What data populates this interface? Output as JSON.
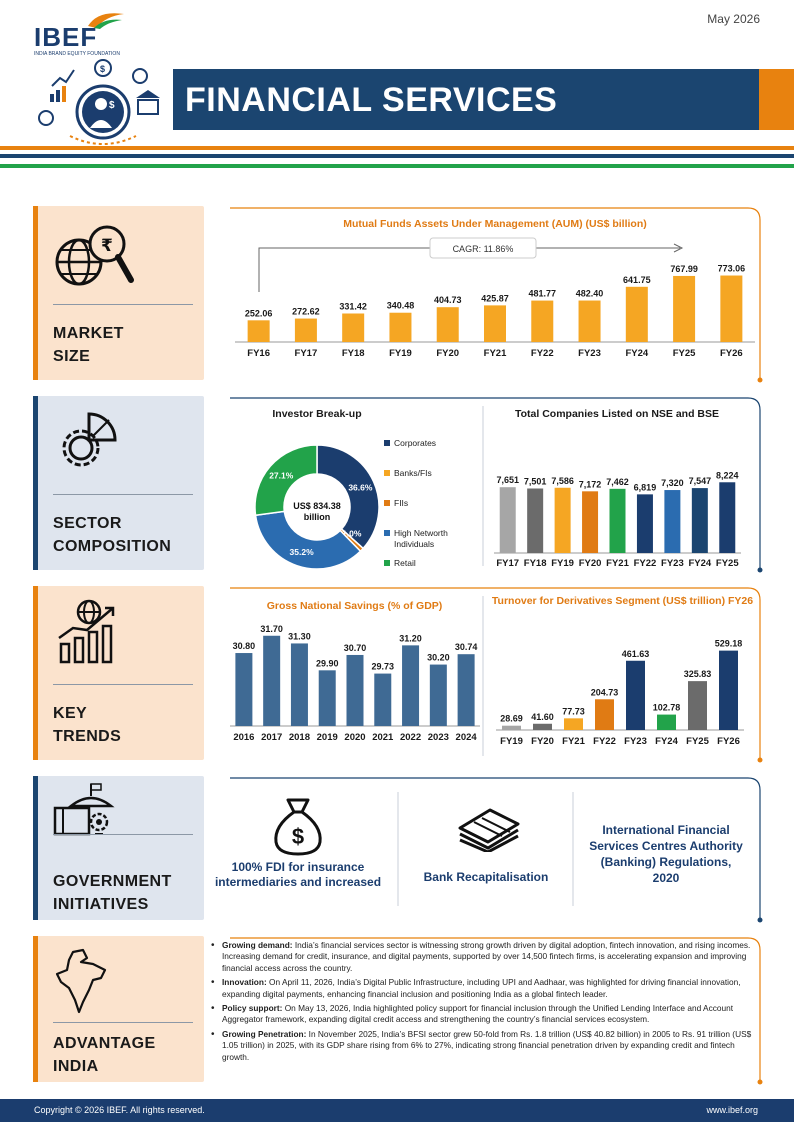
{
  "header": {
    "brand": "IBEF",
    "brand_sub": "INDIA BRAND EQUITY FOUNDATION",
    "date": "May 2026",
    "title": "FINANCIAL SERVICES"
  },
  "sections": {
    "market_size": [
      "MARKET",
      "SIZE"
    ],
    "sector_composition": [
      "SECTOR",
      "COMPOSITION"
    ],
    "key_trends": [
      "KEY",
      "TRENDS"
    ],
    "government_initiatives": [
      "GOVERNMENT",
      "INITIATIVES"
    ],
    "advantage_india": [
      "ADVANTAGE",
      "INDIA"
    ]
  },
  "colors": {
    "navy": "#1b3d6e",
    "orange": "#f5a623",
    "dark_orange": "#e07b14",
    "green": "#22a34a",
    "blue": "#2b6cb0",
    "slate": "#3f6a94",
    "grey": "#a6a6a6",
    "dark_grey": "#6b6b6b"
  },
  "chart_data": [
    {
      "id": "aum",
      "type": "bar",
      "title": "Mutual Funds Assets Under Management (AUM) (US$ billion)",
      "annotation": "CAGR: 11.86%",
      "categories": [
        "FY16",
        "FY17",
        "FY18",
        "FY19",
        "FY20",
        "FY21",
        "FY22",
        "FY23",
        "FY24",
        "FY25",
        "FY26"
      ],
      "values": [
        252.06,
        272.62,
        331.42,
        340.48,
        404.73,
        425.87,
        481.77,
        482.4,
        641.75,
        767.99,
        773.06
      ],
      "labels": [
        "252.06",
        "272.62",
        "331.42",
        "340.48",
        "404.73",
        "425.87",
        "481.77",
        "482.40",
        "641.75",
        "767.99",
        "773.06"
      ],
      "color": "#f5a623",
      "ylim": [
        0,
        1000
      ]
    },
    {
      "id": "investor",
      "type": "pie",
      "title": "Investor Break-up",
      "center_text": [
        "US$ 834.38",
        "billion"
      ],
      "categories": [
        "Corporates",
        "Banks/FIs",
        "FIIs",
        "High Networth Individuals",
        "Retail"
      ],
      "values": [
        36.6,
        0.0,
        1.0,
        35.2,
        27.1
      ],
      "labels": [
        "36.6%",
        "0.0%",
        "1.0%",
        "35.2%",
        "27.1%"
      ],
      "colors": [
        "#1b3d6e",
        "#f5a623",
        "#e07b14",
        "#2b6cb0",
        "#22a34a"
      ]
    },
    {
      "id": "listed",
      "type": "bar",
      "title": "Total Companies Listed on NSE and BSE",
      "categories": [
        "FY17",
        "FY18",
        "FY19",
        "FY20",
        "FY21",
        "FY22",
        "FY23",
        "FY24",
        "FY25"
      ],
      "values": [
        7651,
        7501,
        7586,
        7172,
        7462,
        6819,
        7320,
        7547,
        8224
      ],
      "labels": [
        "7,651",
        "7,501",
        "7,586",
        "7,172",
        "7,462",
        "6,819",
        "7,320",
        "7,547",
        "8,224"
      ],
      "colors": [
        "#a6a6a6",
        "#6b6b6b",
        "#f5a623",
        "#e07b14",
        "#22a34a",
        "#1b3d6e",
        "#2b6cb0",
        "#1b4570",
        "#1b3d6e"
      ],
      "ylim": [
        0,
        10000
      ]
    },
    {
      "id": "savings",
      "type": "bar",
      "title": "Gross National Savings (% of GDP)",
      "categories": [
        "2016",
        "2017",
        "2018",
        "2019",
        "2020",
        "2021",
        "2022",
        "2023",
        "2024"
      ],
      "values": [
        30.8,
        31.7,
        31.3,
        29.9,
        30.7,
        29.73,
        31.2,
        30.2,
        30.74
      ],
      "labels": [
        "30.80",
        "31.70",
        "31.30",
        "29.90",
        "30.70",
        "29.73",
        "31.20",
        "30.20",
        "30.74"
      ],
      "color": "#3f6a94",
      "ylim": [
        27,
        32
      ]
    },
    {
      "id": "derivatives",
      "type": "bar",
      "title": "Turnover for Derivatives Segment (US$ trillion) FY26",
      "categories": [
        "FY19",
        "FY20",
        "FY21",
        "FY22",
        "FY23",
        "FY24",
        "FY25",
        "FY26"
      ],
      "values": [
        28.69,
        41.6,
        77.73,
        204.73,
        461.63,
        102.78,
        325.83,
        529.18
      ],
      "labels": [
        "28.69",
        "41.60",
        "77.73",
        "204.73",
        "461.63",
        "102.78",
        "325.83",
        "529.18"
      ],
      "colors": [
        "#a6a6a6",
        "#6b6b6b",
        "#f5a623",
        "#e07b14",
        "#1b3d6e",
        "#22a34a",
        "#6b6b6b",
        "#1b3d6e"
      ],
      "ylim": [
        0,
        600
      ]
    }
  ],
  "government": {
    "items": [
      {
        "text": "100% FDI for insurance intermediaries and increased",
        "icon": "money-bag-icon"
      },
      {
        "text": "Bank Recapitalisation",
        "icon": "cash-stack-icon"
      },
      {
        "text": "International Financial Services Centres Authority (Banking) Regulations, 2020",
        "icon": ""
      }
    ]
  },
  "advantage": {
    "points": [
      {
        "head": "Growing demand:",
        "body": " India’s financial services sector is witnessing strong growth driven by digital adoption, fintech innovation, and rising incomes. Increasing demand for credit, insurance, and digital payments, supported by over 14,500 fintech firms, is accelerating expansion and improving financial access across the country."
      },
      {
        "head": "Innovation:",
        "body": " On April 11, 2026, India’s Digital Public Infrastructure, including UPI and Aadhaar, was highlighted for driving financial innovation, expanding digital payments, enhancing financial inclusion and positioning India as a global fintech leader."
      },
      {
        "head": "Policy support:",
        "body": " On May 13, 2026, India highlighted policy support for financial inclusion through the Unified Lending Interface and Account Aggregator framework, expanding digital credit access and strengthening the country’s financial services ecosystem."
      },
      {
        "head": "Growing Penetration:",
        "body": " In November 2025, India’s BFSI sector grew 50-fold from Rs. 1.8 trillion (US$ 40.82 billion) in 2005 to Rs. 91 trillion (US$ 1.05 trillion) in 2025, with its GDP share rising from 6% to 27%, indicating strong financial penetration driven by expanding credit and fintech growth."
      }
    ]
  },
  "footer": {
    "copyright": "Copyright © 2026 IBEF. All rights reserved.",
    "site": "www.ibef.org"
  }
}
